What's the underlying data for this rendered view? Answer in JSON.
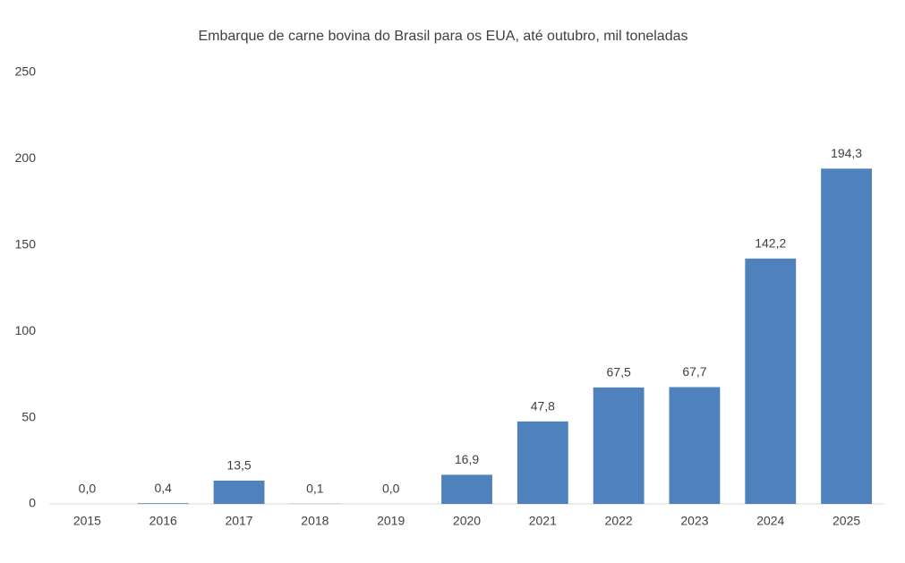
{
  "chart_data": {
    "type": "bar",
    "title": "Embarque de carne bovina do Brasil para os EUA, até outubro, mil toneladas",
    "categories": [
      "2015",
      "2016",
      "2017",
      "2018",
      "2019",
      "2020",
      "2021",
      "2022",
      "2023",
      "2024",
      "2025"
    ],
    "values": [
      0.0,
      0.4,
      13.5,
      0.1,
      0.0,
      16.9,
      47.8,
      67.5,
      67.7,
      142.2,
      194.3
    ],
    "value_labels": [
      "0,0",
      "0,4",
      "13,5",
      "0,1",
      "0,0",
      "16,9",
      "47,8",
      "67,5",
      "67,7",
      "142,2",
      "194,3"
    ],
    "color": "#4f81bd",
    "ylim": [
      0,
      250
    ],
    "yticks": [
      0,
      50,
      100,
      150,
      200,
      250
    ],
    "grid": false
  }
}
